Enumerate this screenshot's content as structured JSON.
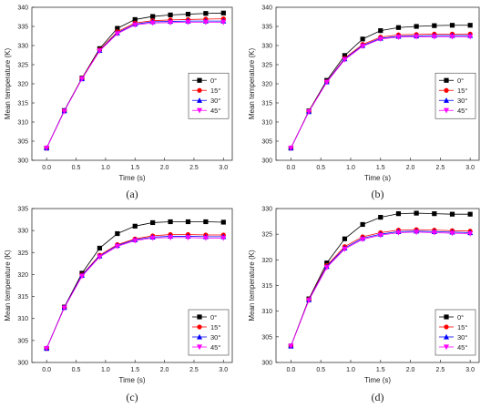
{
  "chart_data": [
    {
      "type": "line",
      "caption": "(a)",
      "xlabel": "Time (s)",
      "ylabel": "Mean temperature (K)",
      "xlim": [
        -0.25,
        3.15
      ],
      "ylim": [
        300,
        340
      ],
      "xticks": [
        "0.0",
        "0.5",
        "1.0",
        "1.5",
        "2.0",
        "2.5",
        "3.0"
      ],
      "yticks": [
        "300",
        "305",
        "310",
        "315",
        "320",
        "325",
        "330",
        "335",
        "340"
      ],
      "legend_position": "right",
      "x": [
        0.0,
        0.3,
        0.6,
        0.9,
        1.2,
        1.5,
        1.8,
        2.1,
        2.4,
        2.7,
        3.0
      ],
      "series": [
        {
          "name": "0°",
          "color": "#000000",
          "marker": "square",
          "values": [
            303.2,
            313.0,
            321.5,
            329.2,
            334.5,
            336.8,
            337.6,
            338.0,
            338.2,
            338.4,
            338.5
          ]
        },
        {
          "name": "15°",
          "color": "#ff0000",
          "marker": "circle",
          "values": [
            303.2,
            312.9,
            321.4,
            328.9,
            333.6,
            335.9,
            336.5,
            336.7,
            336.8,
            336.9,
            337.0
          ]
        },
        {
          "name": "30°",
          "color": "#0000ff",
          "marker": "triangle-up",
          "values": [
            303.2,
            312.9,
            321.3,
            328.7,
            333.3,
            335.6,
            336.2,
            336.3,
            336.4,
            336.4,
            336.4
          ]
        },
        {
          "name": "45°",
          "color": "#ff00ff",
          "marker": "triangle-down",
          "values": [
            303.2,
            312.8,
            321.3,
            328.6,
            333.1,
            335.4,
            335.9,
            336.0,
            336.1,
            336.1,
            336.1
          ]
        }
      ]
    },
    {
      "type": "line",
      "caption": "(b)",
      "xlabel": "Time (s)",
      "ylabel": "Mean temperature (K)",
      "xlim": [
        -0.25,
        3.15
      ],
      "ylim": [
        300,
        340
      ],
      "xticks": [
        "0.0",
        "0.5",
        "1.0",
        "1.5",
        "2.0",
        "2.5",
        "3.0"
      ],
      "yticks": [
        "300",
        "305",
        "310",
        "315",
        "320",
        "325",
        "330",
        "335",
        "340"
      ],
      "legend_position": "right",
      "x": [
        0.0,
        0.3,
        0.6,
        0.9,
        1.2,
        1.5,
        1.8,
        2.1,
        2.4,
        2.7,
        3.0
      ],
      "series": [
        {
          "name": "0°",
          "color": "#000000",
          "marker": "square",
          "values": [
            303.2,
            312.9,
            320.9,
            327.4,
            331.7,
            333.9,
            334.7,
            335.0,
            335.2,
            335.3,
            335.3
          ]
        },
        {
          "name": "15°",
          "color": "#ff0000",
          "marker": "circle",
          "values": [
            303.2,
            312.8,
            320.6,
            326.7,
            330.3,
            332.2,
            332.8,
            332.9,
            333.0,
            333.0,
            333.0
          ]
        },
        {
          "name": "30°",
          "color": "#0000ff",
          "marker": "triangle-up",
          "values": [
            303.2,
            312.7,
            320.5,
            326.5,
            330.0,
            331.9,
            332.4,
            332.5,
            332.6,
            332.6,
            332.6
          ]
        },
        {
          "name": "45°",
          "color": "#ff00ff",
          "marker": "triangle-down",
          "values": [
            303.2,
            312.7,
            320.4,
            326.3,
            329.8,
            331.7,
            332.2,
            332.3,
            332.3,
            332.3,
            332.3
          ]
        }
      ]
    },
    {
      "type": "line",
      "caption": "(c)",
      "xlabel": "Time (s)",
      "ylabel": "Mean temperature (K)",
      "xlim": [
        -0.25,
        3.15
      ],
      "ylim": [
        300,
        335
      ],
      "xticks": [
        "0.0",
        "0.5",
        "1.0",
        "1.5",
        "2.0",
        "2.5",
        "3.0"
      ],
      "yticks": [
        "300",
        "305",
        "310",
        "315",
        "320",
        "325",
        "330",
        "335"
      ],
      "legend_position": "bottom-right",
      "x": [
        0.0,
        0.3,
        0.6,
        0.9,
        1.2,
        1.5,
        1.8,
        2.1,
        2.4,
        2.7,
        3.0
      ],
      "series": [
        {
          "name": "0°",
          "color": "#000000",
          "marker": "square",
          "values": [
            303.2,
            312.6,
            320.3,
            326.0,
            329.3,
            331.0,
            331.8,
            332.0,
            332.0,
            332.0,
            331.9
          ]
        },
        {
          "name": "15°",
          "color": "#ff0000",
          "marker": "circle",
          "values": [
            303.2,
            312.5,
            319.9,
            324.4,
            326.8,
            328.1,
            328.8,
            329.1,
            329.1,
            329.0,
            329.0
          ]
        },
        {
          "name": "30°",
          "color": "#0000ff",
          "marker": "triangle-up",
          "values": [
            303.2,
            312.5,
            319.8,
            324.2,
            326.6,
            327.9,
            328.5,
            328.7,
            328.7,
            328.6,
            328.6
          ]
        },
        {
          "name": "45°",
          "color": "#ff00ff",
          "marker": "triangle-down",
          "values": [
            303.2,
            312.4,
            319.6,
            324.0,
            326.4,
            327.7,
            328.3,
            328.4,
            328.4,
            328.3,
            328.3
          ]
        }
      ]
    },
    {
      "type": "line",
      "caption": "(d)",
      "xlabel": "Time (s)",
      "ylabel": "Mean temperature (K)",
      "xlim": [
        -0.25,
        3.15
      ],
      "ylim": [
        300,
        330
      ],
      "xticks": [
        "0.0",
        "0.5",
        "1.0",
        "1.5",
        "2.0",
        "2.5",
        "3.0"
      ],
      "yticks": [
        "300",
        "305",
        "310",
        "315",
        "320",
        "325",
        "330"
      ],
      "legend_position": "bottom-right",
      "x": [
        0.0,
        0.3,
        0.6,
        0.9,
        1.2,
        1.5,
        1.8,
        2.1,
        2.4,
        2.7,
        3.0
      ],
      "series": [
        {
          "name": "0°",
          "color": "#000000",
          "marker": "square",
          "values": [
            303.2,
            312.4,
            319.4,
            324.1,
            326.9,
            328.3,
            329.0,
            329.1,
            329.0,
            328.9,
            328.9
          ]
        },
        {
          "name": "15°",
          "color": "#ff0000",
          "marker": "circle",
          "values": [
            303.2,
            312.3,
            318.9,
            322.6,
            324.5,
            325.3,
            325.8,
            325.9,
            325.8,
            325.7,
            325.6
          ]
        },
        {
          "name": "30°",
          "color": "#0000ff",
          "marker": "triangle-up",
          "values": [
            303.2,
            312.2,
            318.7,
            322.3,
            324.2,
            325.0,
            325.5,
            325.6,
            325.5,
            325.4,
            325.3
          ]
        },
        {
          "name": "45°",
          "color": "#ff00ff",
          "marker": "triangle-down",
          "values": [
            303.2,
            312.1,
            318.5,
            322.1,
            324.0,
            324.8,
            325.3,
            325.4,
            325.3,
            325.2,
            325.1
          ]
        }
      ]
    }
  ]
}
